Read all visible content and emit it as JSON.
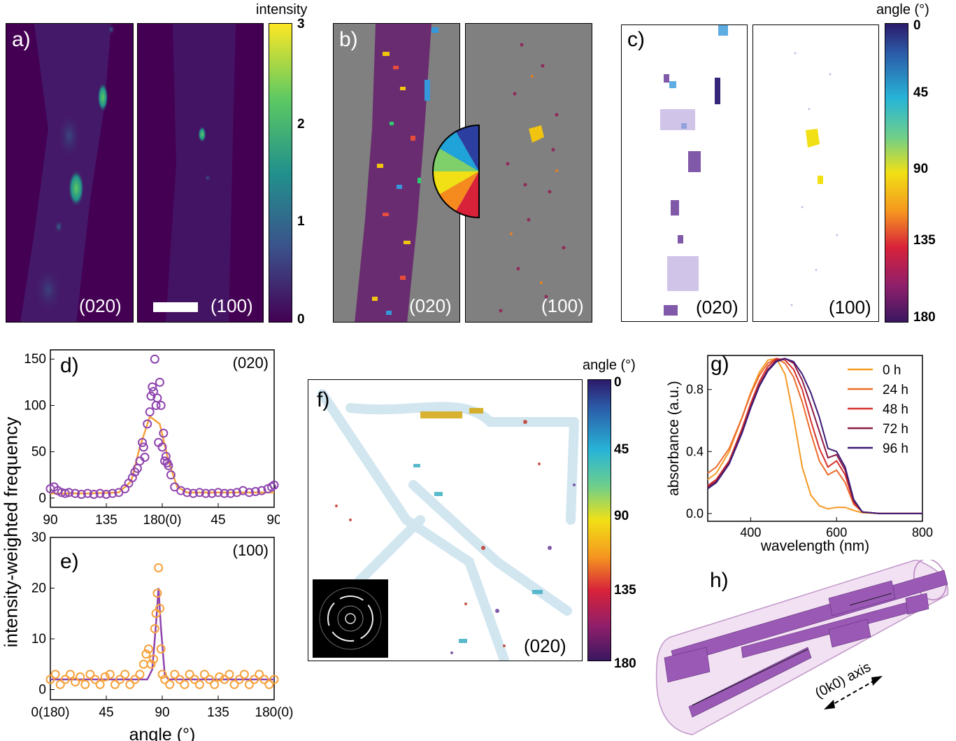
{
  "panel_labels": {
    "a": "a)",
    "b": "b)",
    "c": "c)",
    "d": "d)",
    "e": "e)",
    "f": "f)",
    "g": "g)",
    "h": "h)"
  },
  "reflections": {
    "r020": "(020)",
    "r100": "(100)"
  },
  "colors": {
    "viridis_bg": "#440154",
    "grey_bg": "#808080",
    "orange": "#f6a13a",
    "purple": "#8e44ad",
    "ribbon_purple": "#9b59b6"
  },
  "icons": [
    "scale-bar",
    "color-wheel-icon",
    "diffraction-inset"
  ],
  "colorbars": {
    "intensity": {
      "title": "intensity",
      "ticks": [
        "3",
        "2",
        "1",
        "0"
      ]
    },
    "angle_c": {
      "title": "angle (°)",
      "ticks": [
        "0",
        "45",
        "90",
        "135",
        "180"
      ]
    },
    "angle_f": {
      "title": "angle (°)",
      "ticks": [
        "0",
        "45",
        "90",
        "135",
        "180"
      ]
    }
  },
  "panel_h": {
    "axis_label": "(0k0) axis"
  },
  "chart_data": [
    {
      "id": "d",
      "type": "scatter",
      "title": "(020)",
      "xlabel": "",
      "ylabel": "intensity-weighted frequency",
      "xticks": [
        "90",
        "135",
        "180(0)",
        "45",
        "90"
      ],
      "ylim": [
        -10,
        160
      ],
      "yticks": [
        "0",
        "50",
        "100",
        "150"
      ],
      "series": [
        {
          "values": [
            [
              0,
              10
            ],
            [
              3,
              12
            ],
            [
              6,
              8
            ],
            [
              9,
              6
            ],
            [
              12,
              5
            ],
            [
              15,
              6
            ],
            [
              20,
              5
            ],
            [
              25,
              4
            ],
            [
              30,
              5
            ],
            [
              35,
              4
            ],
            [
              40,
              5
            ],
            [
              45,
              4
            ],
            [
              50,
              5
            ],
            [
              55,
              6
            ],
            [
              60,
              10
            ],
            [
              63,
              16
            ],
            [
              66,
              22
            ],
            [
              68,
              28
            ],
            [
              70,
              32
            ],
            [
              72,
              40
            ],
            [
              74,
              60
            ],
            [
              75,
              55
            ],
            [
              76,
              44
            ],
            [
              78,
              80
            ],
            [
              80,
              93
            ],
            [
              81,
              110
            ],
            [
              82,
              120
            ],
            [
              83,
              115
            ],
            [
              84,
              150
            ],
            [
              85,
              100
            ],
            [
              86,
              108
            ],
            [
              87,
              60
            ],
            [
              88,
              125
            ],
            [
              89,
              100
            ],
            [
              90,
              55
            ],
            [
              91,
              70
            ],
            [
              92,
              40
            ],
            [
              93,
              45
            ],
            [
              94,
              38
            ],
            [
              95,
              35
            ],
            [
              97,
              25
            ],
            [
              100,
              12
            ],
            [
              105,
              8
            ],
            [
              110,
              6
            ],
            [
              115,
              5
            ],
            [
              120,
              6
            ],
            [
              125,
              5
            ],
            [
              130,
              5
            ],
            [
              135,
              6
            ],
            [
              140,
              5
            ],
            [
              145,
              5
            ],
            [
              150,
              6
            ],
            [
              155,
              8
            ],
            [
              160,
              6
            ],
            [
              165,
              7
            ],
            [
              170,
              8
            ],
            [
              175,
              10
            ],
            [
              178,
              12
            ],
            [
              180,
              14
            ]
          ]
        },
        {
          "values": [
            [
              0,
              5
            ],
            [
              30,
              5
            ],
            [
              55,
              6
            ],
            [
              65,
              18
            ],
            [
              72,
              55
            ],
            [
              80,
              88
            ],
            [
              88,
              80
            ],
            [
              95,
              40
            ],
            [
              102,
              12
            ],
            [
              110,
              6
            ],
            [
              180,
              6
            ]
          ]
        }
      ]
    },
    {
      "id": "e",
      "type": "scatter",
      "title": "(100)",
      "xlabel": "angle (°)",
      "ylabel": "",
      "xticks": [
        "0(180)",
        "45",
        "90",
        "135",
        "180(0)"
      ],
      "ylim": [
        -2,
        30
      ],
      "yticks": [
        "0",
        "10",
        "20",
        "30"
      ],
      "series": [
        {
          "values": [
            [
              0,
              2
            ],
            [
              4,
              3
            ],
            [
              8,
              1
            ],
            [
              12,
              2
            ],
            [
              16,
              3
            ],
            [
              20,
              1.5
            ],
            [
              24,
              2.5
            ],
            [
              28,
              1
            ],
            [
              32,
              3
            ],
            [
              36,
              2
            ],
            [
              40,
              1
            ],
            [
              44,
              2.5
            ],
            [
              48,
              3
            ],
            [
              52,
              1
            ],
            [
              56,
              2
            ],
            [
              60,
              3
            ],
            [
              64,
              1
            ],
            [
              68,
              2
            ],
            [
              72,
              3
            ],
            [
              75,
              5
            ],
            [
              77,
              7
            ],
            [
              79,
              8
            ],
            [
              81,
              5
            ],
            [
              83,
              6
            ],
            [
              84,
              12
            ],
            [
              85,
              15
            ],
            [
              86,
              19
            ],
            [
              87,
              24
            ],
            [
              88,
              16
            ],
            [
              89,
              8
            ],
            [
              90,
              3
            ],
            [
              92,
              2
            ],
            [
              96,
              1
            ],
            [
              100,
              3
            ],
            [
              104,
              2
            ],
            [
              108,
              1
            ],
            [
              112,
              3
            ],
            [
              116,
              2
            ],
            [
              120,
              1
            ],
            [
              124,
              3
            ],
            [
              128,
              2
            ],
            [
              132,
              1
            ],
            [
              136,
              2.5
            ],
            [
              140,
              2
            ],
            [
              144,
              3
            ],
            [
              148,
              1
            ],
            [
              152,
              2
            ],
            [
              156,
              3
            ],
            [
              160,
              1
            ],
            [
              164,
              2
            ],
            [
              168,
              3
            ],
            [
              172,
              2
            ],
            [
              176,
              1
            ],
            [
              180,
              2
            ]
          ]
        },
        {
          "values": [
            [
              0,
              2
            ],
            [
              78,
              2
            ],
            [
              82,
              4
            ],
            [
              85,
              13
            ],
            [
              87,
              20
            ],
            [
              89,
              12
            ],
            [
              92,
              3
            ],
            [
              95,
              2
            ],
            [
              180,
              2
            ]
          ]
        }
      ]
    },
    {
      "id": "g",
      "type": "line",
      "xlabel": "wavelength (nm)",
      "ylabel": "absorbance (a.u.)",
      "xlim": [
        300,
        800
      ],
      "ylim": [
        -0.05,
        1.02
      ],
      "xticks": [
        "400",
        "600",
        "800"
      ],
      "yticks": [
        "0.0",
        "0.4",
        "0.8"
      ],
      "series": [
        {
          "name": "0 h",
          "x": [
            300,
            320,
            350,
            380,
            400,
            420,
            440,
            460,
            480,
            500,
            520,
            540,
            560,
            580,
            600,
            620,
            640,
            660,
            700,
            800
          ],
          "y": [
            0.22,
            0.26,
            0.4,
            0.62,
            0.78,
            0.91,
            0.99,
            1.0,
            0.9,
            0.62,
            0.3,
            0.12,
            0.05,
            0.03,
            0.04,
            0.04,
            0.02,
            0.005,
            0.0,
            0.0
          ]
        },
        {
          "name": "24 h",
          "x": [
            300,
            320,
            350,
            380,
            400,
            420,
            440,
            460,
            480,
            500,
            520,
            540,
            560,
            580,
            600,
            620,
            640,
            660,
            700,
            800
          ],
          "y": [
            0.26,
            0.3,
            0.42,
            0.62,
            0.77,
            0.89,
            0.97,
            1.0,
            0.97,
            0.88,
            0.72,
            0.52,
            0.34,
            0.25,
            0.28,
            0.2,
            0.06,
            0.01,
            0.0,
            0.0
          ]
        },
        {
          "name": "48 h",
          "x": [
            300,
            320,
            350,
            380,
            400,
            420,
            440,
            460,
            480,
            500,
            520,
            540,
            560,
            580,
            600,
            620,
            640,
            660,
            700,
            800
          ],
          "y": [
            0.18,
            0.22,
            0.34,
            0.55,
            0.71,
            0.85,
            0.95,
            1.0,
            0.99,
            0.93,
            0.8,
            0.6,
            0.42,
            0.3,
            0.34,
            0.25,
            0.07,
            0.01,
            0.0,
            0.0
          ]
        },
        {
          "name": "72 h",
          "x": [
            300,
            320,
            350,
            380,
            400,
            420,
            440,
            460,
            480,
            500,
            520,
            540,
            560,
            580,
            600,
            620,
            640,
            660,
            700,
            800
          ],
          "y": [
            0.17,
            0.21,
            0.33,
            0.53,
            0.69,
            0.83,
            0.93,
            0.99,
            1.0,
            0.97,
            0.86,
            0.7,
            0.53,
            0.36,
            0.38,
            0.28,
            0.08,
            0.01,
            0.0,
            0.0
          ]
        },
        {
          "name": "96 h",
          "x": [
            300,
            320,
            350,
            380,
            400,
            420,
            440,
            460,
            480,
            500,
            520,
            540,
            560,
            580,
            600,
            620,
            640,
            660,
            700,
            800
          ],
          "y": [
            0.16,
            0.2,
            0.32,
            0.52,
            0.68,
            0.82,
            0.92,
            0.98,
            1.0,
            0.98,
            0.9,
            0.78,
            0.62,
            0.42,
            0.4,
            0.3,
            0.09,
            0.01,
            0.0,
            0.0
          ]
        }
      ]
    }
  ]
}
